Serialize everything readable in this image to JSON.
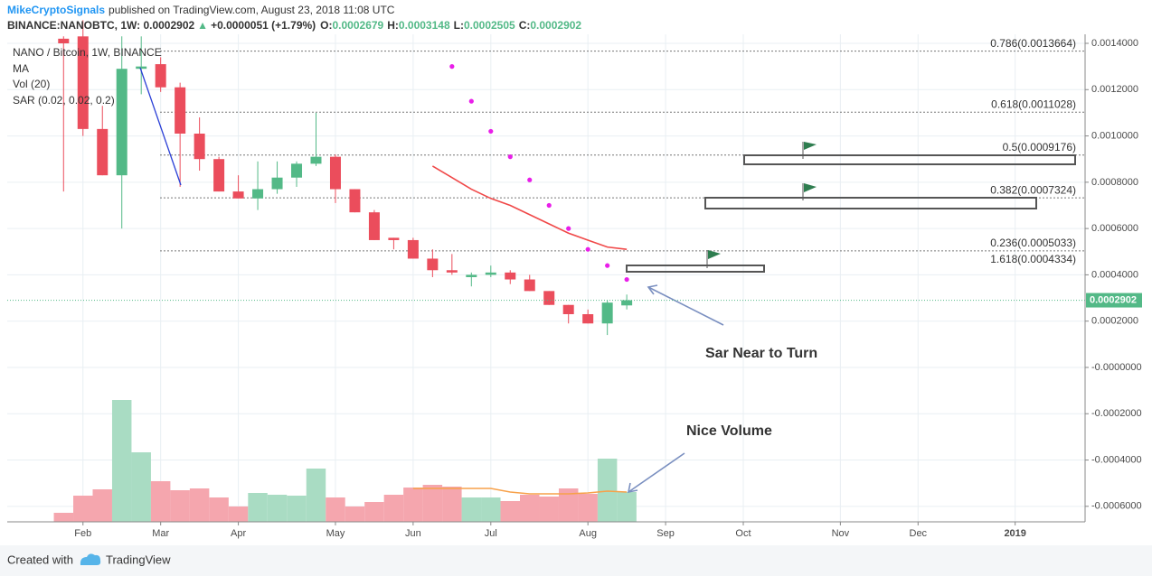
{
  "chart_data": {
    "type": "candlestick",
    "publisher": "MikeCryptoSignals",
    "subtitle": "published on TradingView.com, August 23, 2018 11:08 UTC",
    "header": {
      "symbol": "BINANCE:NANOBTC, 1W: 0.0002902",
      "arrow": "▲",
      "change": "+0.0000051 (+1.79%)",
      "ohlc": [
        "O:",
        "0.0002679",
        "H:",
        "0.0003148",
        "L:",
        "0.0002505",
        "C:",
        "0.0002902"
      ]
    },
    "legend": [
      "NANO / Bitcoin, 1W, BINANCE"
    ],
    "x": [
      0,
      1,
      2,
      3,
      4,
      5,
      6,
      7,
      8,
      9,
      10,
      11,
      12,
      13,
      14,
      15,
      16,
      17,
      18,
      19,
      20,
      21,
      22,
      23,
      24,
      25,
      26,
      27,
      28,
      29
    ],
    "open": [
      0.00142,
      0.00143,
      0.00103,
      0.00083,
      0.00129,
      0.00131,
      0.00121,
      0.00101,
      0.0009,
      0.00076,
      0.00073,
      0.00077,
      0.00082,
      0.00088,
      0.00091,
      0.00077,
      0.00067,
      0.00056,
      0.00055,
      0.00047,
      0.00042,
      0.00039,
      0.0004,
      0.00041,
      0.00038,
      0.00033,
      0.00027,
      0.00023,
      0.00019,
      0.0002679
    ],
    "high": [
      0.00143,
      0.0015,
      0.00113,
      0.00143,
      0.00143,
      0.00134,
      0.00123,
      0.00108,
      0.00091,
      0.00083,
      0.00089,
      0.00089,
      0.00089,
      0.0011,
      0.00092,
      0.00077,
      0.00068,
      0.00056,
      0.00056,
      0.00051,
      0.00049,
      0.00041,
      0.00044,
      0.00042,
      0.0004,
      0.00033,
      0.00027,
      0.00025,
      0.00029,
      0.0003148
    ],
    "low": [
      0.00076,
      0.001,
      0.00083,
      0.0006,
      0.00118,
      0.00119,
      0.00078,
      0.00085,
      0.00076,
      0.00073,
      0.00068,
      0.00075,
      0.00078,
      0.00087,
      0.00071,
      0.00067,
      0.00055,
      0.00051,
      0.00047,
      0.00039,
      0.0004,
      0.00035,
      0.00039,
      0.00036,
      0.00033,
      0.00027,
      0.00019,
      0.00019,
      0.00014,
      0.0002505
    ],
    "close": [
      0.0014,
      0.00103,
      0.00083,
      0.00129,
      0.0013,
      0.00121,
      0.00101,
      0.0009,
      0.00076,
      0.00073,
      0.00077,
      0.00082,
      0.00088,
      0.00091,
      0.00077,
      0.00067,
      0.00055,
      0.00055,
      0.00047,
      0.00042,
      0.00041,
      0.0004,
      0.00041,
      0.00038,
      0.00033,
      0.00027,
      0.00023,
      0.00019,
      0.00028,
      0.0002902
    ],
    "up_color": "#53b987",
    "down_color": "#eb4d5c",
    "series": [
      {
        "name": "MA",
        "color": "#f04848",
        "values": [
          null,
          null,
          null,
          null,
          null,
          null,
          null,
          null,
          null,
          null,
          null,
          null,
          null,
          null,
          null,
          null,
          null,
          null,
          null,
          0.00087,
          0.00082,
          0.00077,
          0.00073,
          0.0007,
          0.00066,
          0.00062,
          0.00058,
          0.00055,
          0.00052,
          0.00051
        ]
      },
      {
        "name": "Vol (20)",
        "axis": "y2",
        "up_color": "#a9dcc3",
        "down_color": "#f5a6ae",
        "ma_color": "#f7a14a",
        "values": [
          10,
          29,
          36,
          135,
          77,
          45,
          35,
          37,
          27,
          17,
          32,
          30,
          29,
          59,
          27,
          17,
          22,
          30,
          38,
          41,
          39,
          27,
          27,
          23,
          30,
          28,
          37,
          31,
          70,
          33
        ],
        "ma": [
          null,
          null,
          null,
          null,
          null,
          null,
          null,
          null,
          null,
          null,
          null,
          null,
          null,
          null,
          null,
          null,
          null,
          null,
          37,
          37,
          37,
          37,
          37,
          33,
          31,
          31,
          31,
          32,
          34,
          33
        ]
      },
      {
        "name": "SAR (0.02, 0.02, 0.2)",
        "color": "#e91ee9",
        "values": [
          null,
          null,
          null,
          null,
          null,
          null,
          null,
          null,
          null,
          null,
          null,
          null,
          null,
          null,
          null,
          null,
          null,
          null,
          null,
          null,
          0.0013,
          0.00115,
          0.00102,
          0.00091,
          0.00081,
          0.0007,
          0.0006,
          0.00051,
          0.00044,
          0.00038
        ]
      }
    ],
    "fib_levels": [
      {
        "value": 0.0013664,
        "label": "0.786(0.0013664)"
      },
      {
        "value": 0.0011028,
        "label": "0.618(0.0011028)"
      },
      {
        "value": 0.0009176,
        "label": "0.5(0.0009176)"
      },
      {
        "value": 0.0007324,
        "label": "0.382(0.0007324)"
      },
      {
        "value": 0.0005033,
        "label": "0.236(0.0005033)"
      }
    ],
    "extension_label": "1.618(0.0004334)",
    "last_price": 0.0002902,
    "annotations": [
      "Sar Near to Turn",
      "Nice Volume"
    ],
    "xlim": [
      -2.9,
      52.6
    ],
    "xticks": [
      {
        "value": 1,
        "label": "Feb"
      },
      {
        "value": 5,
        "label": "Mar"
      },
      {
        "value": 9,
        "label": "Apr"
      },
      {
        "value": 14,
        "label": "May"
      },
      {
        "value": 18,
        "label": "Jun"
      },
      {
        "value": 22,
        "label": "Jul"
      },
      {
        "value": 27,
        "label": "Aug"
      },
      {
        "value": 31,
        "label": "Sep"
      },
      {
        "value": 35,
        "label": "Oct"
      },
      {
        "value": 40,
        "label": "Nov"
      },
      {
        "value": 44,
        "label": "Dec"
      },
      {
        "value": 49,
        "label": "2019"
      }
    ],
    "ylim": [
      -0.000667,
      0.001439
    ],
    "yticks": [
      {
        "value": 0.0014,
        "label": "0.0014000"
      },
      {
        "value": 0.0012,
        "label": "0.0012000"
      },
      {
        "value": 0.001,
        "label": "0.0010000"
      },
      {
        "value": 0.0008,
        "label": "0.0008000"
      },
      {
        "value": 0.0006,
        "label": "0.0006000"
      },
      {
        "value": 0.0004,
        "label": "0.0004000"
      },
      {
        "value": 0.0002,
        "label": "0.0002000"
      },
      {
        "value": 0,
        "label": "-0.0000000"
      },
      {
        "value": -0.0002,
        "label": "-0.0002000"
      },
      {
        "value": -0.0004,
        "label": "-0.0004000"
      },
      {
        "value": -0.0006,
        "label": "-0.0006000"
      }
    ],
    "y2lim": [
      0,
      160
    ],
    "grid": true,
    "footer": [
      "Created with",
      "TradingView"
    ]
  }
}
